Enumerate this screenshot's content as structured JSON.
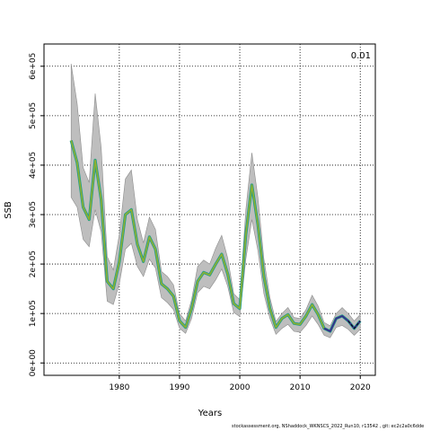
{
  "chart_data": {
    "type": "line",
    "title": "",
    "xlabel": "Years",
    "ylabel": "SSB",
    "xlim": [
      1967.5,
      2022.5
    ],
    "ylim": [
      -25000,
      645000
    ],
    "xticks": [
      1980,
      1990,
      2000,
      2010,
      2020
    ],
    "yticks": [
      0,
      100000,
      200000,
      300000,
      400000,
      500000,
      600000
    ],
    "ytick_labels": [
      "0e+00",
      "1e+05",
      "2e+05",
      "3e+05",
      "4e+05",
      "5e+05",
      "6e+05"
    ],
    "grid": true,
    "corner_label": "0.01",
    "colors": {
      "band": "#bebebe",
      "band_edge": "#8c8c8c",
      "mid": "#1f9e89",
      "early": "#8fb030",
      "late": "#3b2b8c",
      "dash": "#000000"
    },
    "series": [
      {
        "x": [
          1972,
          1973,
          1974,
          1975,
          1976,
          1977,
          1978,
          1979,
          1980,
          1981,
          1982,
          1983,
          1984,
          1985,
          1986,
          1987,
          1988,
          1989,
          1990,
          1991,
          1992,
          1993,
          1994,
          1995,
          1996,
          1997,
          1998,
          1999,
          2000,
          2001,
          2002,
          2003,
          2004,
          2005,
          2006,
          2007,
          2008,
          2009,
          2010,
          2011,
          2012,
          2013,
          2014,
          2015,
          2016,
          2017,
          2018,
          2019,
          2020
        ],
        "y": [
          450000,
          405000,
          315000,
          290000,
          410000,
          330000,
          165000,
          150000,
          205000,
          300000,
          310000,
          240000,
          205000,
          255000,
          230000,
          160000,
          150000,
          135000,
          85000,
          72000,
          110000,
          165000,
          183000,
          178000,
          200000,
          220000,
          180000,
          120000,
          110000,
          260000,
          360000,
          280000,
          175000,
          110000,
          72000,
          90000,
          98000,
          80000,
          78000,
          95000,
          118000,
          98000,
          70000,
          64000,
          90000,
          95000,
          85000,
          70000,
          85000
        ],
        "lower": [
          335000,
          315000,
          250000,
          235000,
          310000,
          265000,
          125000,
          118000,
          160000,
          230000,
          242000,
          195000,
          175000,
          210000,
          192000,
          132000,
          122000,
          108000,
          70000,
          60000,
          90000,
          142000,
          155000,
          150000,
          168000,
          190000,
          155000,
          102000,
          94000,
          210000,
          290000,
          228000,
          140000,
          90000,
          58000,
          70000,
          78000,
          64000,
          62000,
          76000,
          95000,
          78000,
          56000,
          51000,
          72000,
          76000,
          68000,
          56000,
          68000
        ],
        "upper": [
          605000,
          525000,
          395000,
          365000,
          545000,
          435000,
          215000,
          188000,
          260000,
          372000,
          390000,
          290000,
          243000,
          295000,
          270000,
          185000,
          175000,
          158000,
          100000,
          85000,
          128000,
          195000,
          208000,
          200000,
          232000,
          258000,
          212000,
          140000,
          128000,
          310000,
          425000,
          335000,
          210000,
          132000,
          84000,
          100000,
          112000,
          92000,
          90000,
          108000,
          137000,
          115000,
          82000,
          75000,
          100000,
          112000,
          100000,
          85000,
          98000
        ]
      }
    ]
  },
  "footer_note": "stockassessment.org, NShaddock_WKNSCS_2022_Run10, r13542 , git: ec2c2a0c6dde"
}
